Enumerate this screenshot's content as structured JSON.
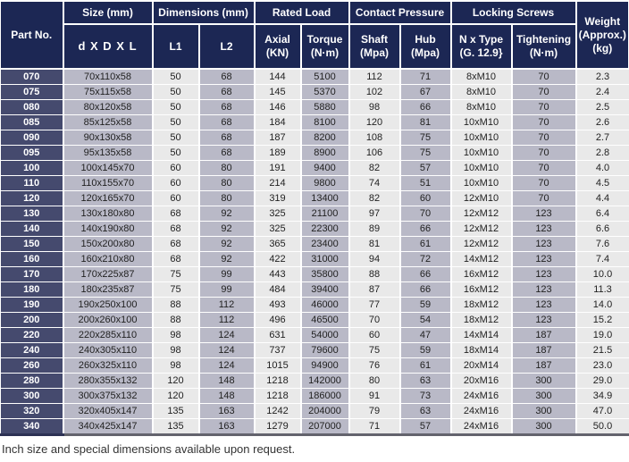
{
  "colors": {
    "header_bg": "#1c2754",
    "part_column_bg": "#454a6e",
    "column_lavender": "#b9b9c7",
    "column_light": "#e9e9e9",
    "grid_divider": "#ffffff",
    "bottom_border": "#63636d",
    "cell_text": "#222222",
    "header_text": "#ffffff",
    "footer_text": "#333333"
  },
  "table": {
    "header": {
      "part_no": "Part No.",
      "size_group": "Size (mm)",
      "size_sub": "d X D X L",
      "dimensions_group": "Dimensions (mm)",
      "l1": "L1",
      "l2": "L2",
      "rated_load_group": "Rated Load",
      "axial_line1": "Axial",
      "axial_line2": "(KN)",
      "torque_line1": "Torque",
      "torque_line2": "(N·m)",
      "contact_pressure_group": "Contact Pressure",
      "shaft_line1": "Shaft",
      "shaft_line2": "(Mpa)",
      "hub_line1": "Hub",
      "hub_line2": "(Mpa)",
      "locking_screws_group": "Locking Screws",
      "n_type_line1": "N x Type",
      "n_type_line2": "(G. 12.9}",
      "tightening_line1": "Tightening",
      "tightening_line2": "(N·m)",
      "weight_line1": "Weight",
      "weight_line2": "(Approx.)",
      "weight_line3": "(kg)"
    },
    "rows": [
      [
        "070",
        "70x110x58",
        "50",
        "68",
        "144",
        "5100",
        "112",
        "71",
        "8xM10",
        "70",
        "2.3"
      ],
      [
        "075",
        "75x115x58",
        "50",
        "68",
        "145",
        "5370",
        "102",
        "67",
        "8xM10",
        "70",
        "2.4"
      ],
      [
        "080",
        "80x120x58",
        "50",
        "68",
        "146",
        "5880",
        "98",
        "66",
        "8xM10",
        "70",
        "2.5"
      ],
      [
        "085",
        "85x125x58",
        "50",
        "68",
        "184",
        "8100",
        "120",
        "81",
        "10xM10",
        "70",
        "2.6"
      ],
      [
        "090",
        "90x130x58",
        "50",
        "68",
        "187",
        "8200",
        "108",
        "75",
        "10xM10",
        "70",
        "2.7"
      ],
      [
        "095",
        "95x135x58",
        "50",
        "68",
        "189",
        "8900",
        "106",
        "75",
        "10xM10",
        "70",
        "2.8"
      ],
      [
        "100",
        "100x145x70",
        "60",
        "80",
        "191",
        "9400",
        "82",
        "57",
        "10xM10",
        "70",
        "4.0"
      ],
      [
        "110",
        "110x155x70",
        "60",
        "80",
        "214",
        "9800",
        "74",
        "51",
        "10xM10",
        "70",
        "4.5"
      ],
      [
        "120",
        "120x165x70",
        "60",
        "80",
        "319",
        "13400",
        "82",
        "60",
        "12xM10",
        "70",
        "4.4"
      ],
      [
        "130",
        "130x180x80",
        "68",
        "92",
        "325",
        "21100",
        "97",
        "70",
        "12xM12",
        "123",
        "6.4"
      ],
      [
        "140",
        "140x190x80",
        "68",
        "92",
        "325",
        "22300",
        "89",
        "66",
        "12xM12",
        "123",
        "6.6"
      ],
      [
        "150",
        "150x200x80",
        "68",
        "92",
        "365",
        "23400",
        "81",
        "61",
        "12xM12",
        "123",
        "7.6"
      ],
      [
        "160",
        "160x210x80",
        "68",
        "92",
        "422",
        "31000",
        "94",
        "72",
        "14xM12",
        "123",
        "7.4"
      ],
      [
        "170",
        "170x225x87",
        "75",
        "99",
        "443",
        "35800",
        "88",
        "66",
        "16xM12",
        "123",
        "10.0"
      ],
      [
        "180",
        "180x235x87",
        "75",
        "99",
        "484",
        "39400",
        "87",
        "66",
        "16xM12",
        "123",
        "11.3"
      ],
      [
        "190",
        "190x250x100",
        "88",
        "112",
        "493",
        "46000",
        "77",
        "59",
        "18xM12",
        "123",
        "14.0"
      ],
      [
        "200",
        "200x260x100",
        "88",
        "112",
        "496",
        "46500",
        "70",
        "54",
        "18xM12",
        "123",
        "15.2"
      ],
      [
        "220",
        "220x285x110",
        "98",
        "124",
        "631",
        "54000",
        "60",
        "47",
        "14xM14",
        "187",
        "19.0"
      ],
      [
        "240",
        "240x305x110",
        "98",
        "124",
        "737",
        "79600",
        "75",
        "59",
        "18xM14",
        "187",
        "21.5"
      ],
      [
        "260",
        "260x325x110",
        "98",
        "124",
        "1015",
        "94900",
        "76",
        "61",
        "20xM14",
        "187",
        "23.0"
      ],
      [
        "280",
        "280x355x132",
        "120",
        "148",
        "1218",
        "142000",
        "80",
        "63",
        "20xM16",
        "300",
        "29.0"
      ],
      [
        "300",
        "300x375x132",
        "120",
        "148",
        "1218",
        "186000",
        "91",
        "73",
        "24xM16",
        "300",
        "34.9"
      ],
      [
        "320",
        "320x405x147",
        "135",
        "163",
        "1242",
        "204000",
        "79",
        "63",
        "24xM16",
        "300",
        "47.0"
      ],
      [
        "340",
        "340x425x147",
        "135",
        "163",
        "1279",
        "207000",
        "71",
        "57",
        "24xM16",
        "300",
        "50.0"
      ]
    ],
    "footer_note": "Inch size and special dimensions available upon request."
  }
}
